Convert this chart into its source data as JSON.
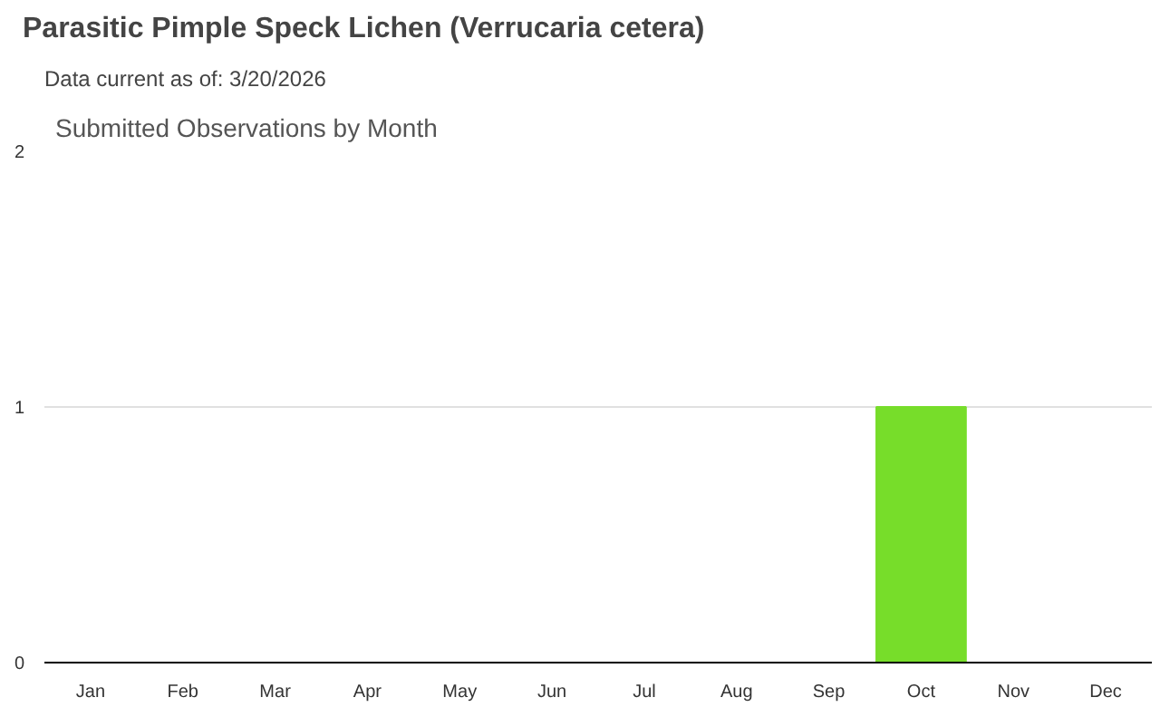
{
  "chart_data": {
    "type": "bar",
    "title": "Parasitic Pimple Speck Lichen   (Verrucaria cetera)",
    "subtitle": "Data current as of: 3/20/2026",
    "annotations": [
      "Submitted Observations by Month"
    ],
    "categories": [
      "Jan",
      "Feb",
      "Mar",
      "Apr",
      "May",
      "Jun",
      "Jul",
      "Aug",
      "Sep",
      "Oct",
      "Nov",
      "Dec"
    ],
    "values": [
      0,
      0,
      0,
      0,
      0,
      0,
      0,
      0,
      0,
      1,
      0,
      0
    ],
    "color": "#77dd2a",
    "ylim": [
      0,
      2
    ],
    "yticks": [
      0,
      1,
      2
    ],
    "grid": "y"
  }
}
